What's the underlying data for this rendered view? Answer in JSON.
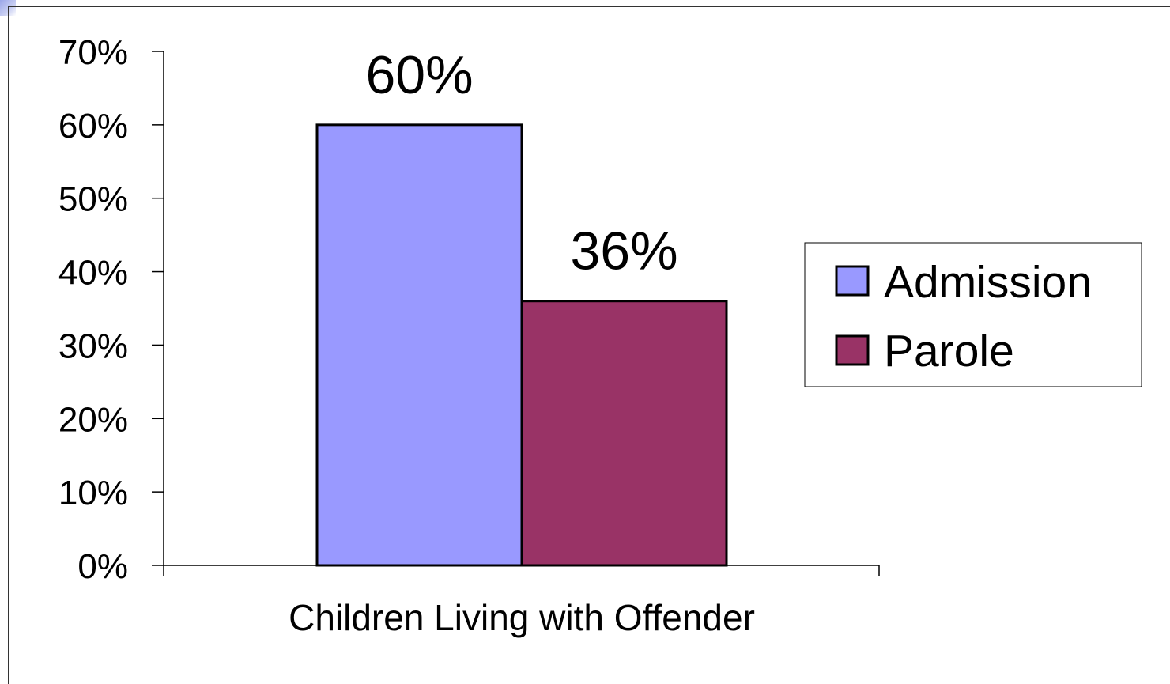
{
  "colors": {
    "admission": "#9999ff",
    "parole": "#993366",
    "axis": "#000000",
    "background": "#ffffff"
  },
  "chart_data": {
    "type": "bar",
    "title": "",
    "xlabel": "",
    "ylabel": "",
    "categories": [
      "Children Living with Offender"
    ],
    "series": [
      {
        "name": "Admission",
        "values": [
          60
        ],
        "label": "60%"
      },
      {
        "name": "Parole",
        "values": [
          36
        ],
        "label": "36%"
      }
    ],
    "ylim": [
      0,
      70
    ],
    "yticks": [
      0,
      10,
      20,
      30,
      40,
      50,
      60,
      70
    ],
    "ytick_labels": [
      "0%",
      "10%",
      "20%",
      "30%",
      "40%",
      "50%",
      "60%",
      "70%"
    ],
    "grid": false,
    "legend_position": "right"
  }
}
